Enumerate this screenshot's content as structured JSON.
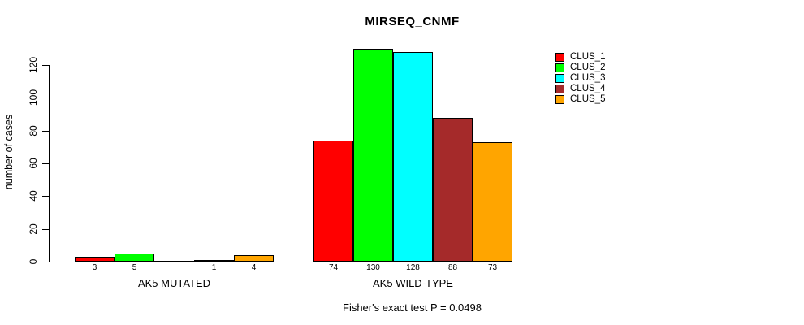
{
  "title": "MIRSEQ_CNMF",
  "annotation": "Fisher's exact test P = 0.0498",
  "y_axis": {
    "label": "number of cases",
    "ticks": [
      0,
      20,
      40,
      60,
      80,
      100,
      120
    ]
  },
  "legend": {
    "items": [
      {
        "label": "CLUS_1",
        "color": "#FF0000"
      },
      {
        "label": "CLUS_2",
        "color": "#00FF00"
      },
      {
        "label": "CLUS_3",
        "color": "#00FFFF"
      },
      {
        "label": "CLUS_4",
        "color": "#A52A2A"
      },
      {
        "label": "CLUS_5",
        "color": "#FFA500"
      }
    ]
  },
  "chart_data": {
    "type": "bar",
    "title": "MIRSEQ_CNMF",
    "xlabel": "",
    "ylabel": "number of cases",
    "ylim": [
      0,
      130
    ],
    "yticks": [
      0,
      20,
      40,
      60,
      80,
      100,
      120
    ],
    "grid": false,
    "legend_position": "top-right",
    "categories": [
      "AK5 MUTATED",
      "AK5 WILD-TYPE"
    ],
    "series": [
      {
        "name": "CLUS_1",
        "color": "#FF0000",
        "values": [
          3,
          74
        ]
      },
      {
        "name": "CLUS_2",
        "color": "#00FF00",
        "values": [
          5,
          130
        ]
      },
      {
        "name": "CLUS_3",
        "color": "#00FFFF",
        "values": [
          0,
          128
        ]
      },
      {
        "name": "CLUS_4",
        "color": "#A52A2A",
        "values": [
          1,
          88
        ]
      },
      {
        "name": "CLUS_5",
        "color": "#FFA500",
        "values": [
          4,
          73
        ]
      }
    ],
    "bar_labels": [
      [
        "3",
        "5",
        "",
        "1",
        "4"
      ],
      [
        "74",
        "130",
        "128",
        "88",
        "73"
      ]
    ],
    "annotation": "Fisher's exact test P = 0.0498"
  }
}
